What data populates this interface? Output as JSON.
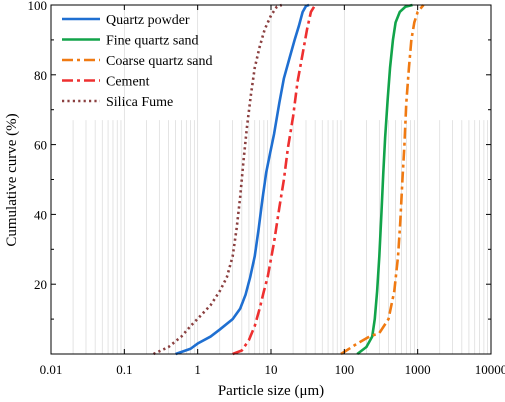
{
  "chart_data": {
    "type": "line",
    "title": "",
    "xlabel": "Particle size (μm)",
    "ylabel": "Cumulative curve (%)",
    "xscale": "log",
    "xlim": [
      0.01,
      10000
    ],
    "ylim": [
      0,
      100
    ],
    "x_ticks": [
      0.01,
      0.1,
      1,
      10,
      100,
      1000,
      10000
    ],
    "x_tick_labels": [
      "0.01",
      "0.1",
      "1",
      "10",
      "100",
      "1000",
      "10000"
    ],
    "y_ticks": [
      20,
      40,
      60,
      80,
      100
    ],
    "y_tick_labels": [
      "20",
      "40",
      "60",
      "80",
      "100"
    ],
    "grid": "vertical",
    "legend_position": "top-left",
    "series": [
      {
        "name": "Quartz powder",
        "color": "#1f6fd1",
        "dash": "solid",
        "points": [
          [
            0.5,
            0
          ],
          [
            0.8,
            1.5
          ],
          [
            1.0,
            3
          ],
          [
            1.5,
            5
          ],
          [
            2.0,
            7
          ],
          [
            3.0,
            10
          ],
          [
            3.8,
            13
          ],
          [
            4.5,
            17
          ],
          [
            5.2,
            22
          ],
          [
            6.0,
            28
          ],
          [
            6.8,
            36
          ],
          [
            7.6,
            44
          ],
          [
            8.6,
            52
          ],
          [
            9.6,
            57
          ],
          [
            11,
            63
          ],
          [
            13,
            72
          ],
          [
            15,
            79
          ],
          [
            18,
            85
          ],
          [
            21,
            90
          ],
          [
            24,
            94
          ],
          [
            27,
            98
          ],
          [
            30,
            99.7
          ],
          [
            33,
            100
          ]
        ]
      },
      {
        "name": "Fine quartz sand",
        "color": "#12a44a",
        "dash": "solid",
        "points": [
          [
            150,
            0
          ],
          [
            200,
            2
          ],
          [
            240,
            5
          ],
          [
            260,
            10
          ],
          [
            280,
            18
          ],
          [
            300,
            28
          ],
          [
            320,
            40
          ],
          [
            340,
            52
          ],
          [
            360,
            62
          ],
          [
            390,
            73
          ],
          [
            420,
            82
          ],
          [
            460,
            90
          ],
          [
            500,
            95
          ],
          [
            570,
            98
          ],
          [
            680,
            99.5
          ],
          [
            850,
            100
          ]
        ]
      },
      {
        "name": "Coarse quartz sand",
        "color": "#f07a12",
        "dash": "dashdot",
        "points": [
          [
            90,
            0
          ],
          [
            150,
            3
          ],
          [
            220,
            5
          ],
          [
            300,
            6
          ],
          [
            400,
            10
          ],
          [
            480,
            18
          ],
          [
            540,
            28
          ],
          [
            580,
            38
          ],
          [
            620,
            50
          ],
          [
            660,
            60
          ],
          [
            700,
            72
          ],
          [
            760,
            82
          ],
          [
            820,
            90
          ],
          [
            900,
            95
          ],
          [
            1000,
            98
          ],
          [
            1200,
            100
          ]
        ]
      },
      {
        "name": "Cement",
        "color": "#ee3030",
        "dash": "dashdot",
        "points": [
          [
            3.0,
            0
          ],
          [
            4.0,
            1
          ],
          [
            5.0,
            4
          ],
          [
            6.0,
            8
          ],
          [
            7.0,
            13
          ],
          [
            8.0,
            18
          ],
          [
            9.0,
            22
          ],
          [
            11,
            32
          ],
          [
            13,
            42
          ],
          [
            15,
            50
          ],
          [
            17,
            59
          ],
          [
            20,
            68
          ],
          [
            23,
            78
          ],
          [
            27,
            86
          ],
          [
            31,
            93
          ],
          [
            35,
            98
          ],
          [
            40,
            100
          ]
        ]
      },
      {
        "name": "Silica Fume",
        "color": "#8b4040",
        "dash": "dot",
        "points": [
          [
            0.25,
            0
          ],
          [
            0.4,
            2
          ],
          [
            0.6,
            5
          ],
          [
            0.8,
            8
          ],
          [
            1.1,
            11
          ],
          [
            1.5,
            14
          ],
          [
            2.0,
            18
          ],
          [
            2.5,
            22
          ],
          [
            3.0,
            28
          ],
          [
            3.4,
            36
          ],
          [
            3.8,
            45
          ],
          [
            4.2,
            55
          ],
          [
            4.7,
            65
          ],
          [
            5.3,
            74
          ],
          [
            6.0,
            82
          ],
          [
            7.0,
            88
          ],
          [
            8.2,
            93
          ],
          [
            10,
            97
          ],
          [
            12,
            99.5
          ],
          [
            14,
            100
          ]
        ]
      }
    ]
  }
}
